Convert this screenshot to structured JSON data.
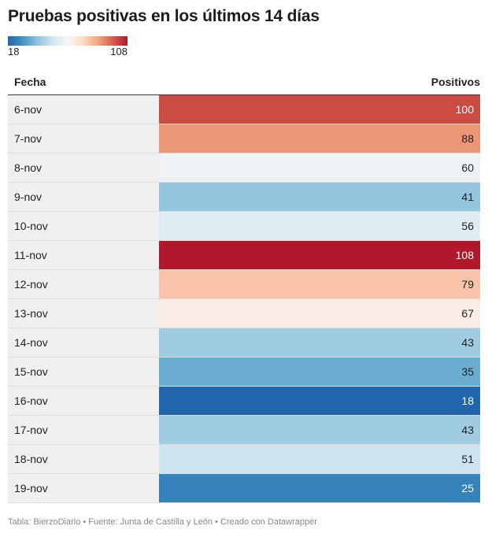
{
  "title": "Pruebas positivas en los últimos 14 días",
  "legend": {
    "min_label": "18",
    "max_label": "108"
  },
  "footer": "Tabla: BierzoDiario • Fuente: Junta de Castilla y León • Creado con Datawrapper",
  "chart_data": {
    "type": "table",
    "title": "Pruebas positivas en los últimos 14 días",
    "columns": [
      "Fecha",
      "Positivos"
    ],
    "color_scale": {
      "min": 18,
      "max": 108,
      "colors": [
        "#2166ac",
        "#4393c3",
        "#92c5de",
        "#d1e5f0",
        "#f7f7f7",
        "#fddbc7",
        "#f4a582",
        "#d6604d",
        "#b2182b"
      ]
    },
    "rows": [
      {
        "date": "6-nov",
        "value": 100
      },
      {
        "date": "7-nov",
        "value": 88
      },
      {
        "date": "8-nov",
        "value": 60
      },
      {
        "date": "9-nov",
        "value": 41
      },
      {
        "date": "10-nov",
        "value": 56
      },
      {
        "date": "11-nov",
        "value": 108
      },
      {
        "date": "12-nov",
        "value": 79
      },
      {
        "date": "13-nov",
        "value": 67
      },
      {
        "date": "14-nov",
        "value": 43
      },
      {
        "date": "15-nov",
        "value": 35
      },
      {
        "date": "16-nov",
        "value": 18
      },
      {
        "date": "17-nov",
        "value": 43
      },
      {
        "date": "18-nov",
        "value": 51
      },
      {
        "date": "19-nov",
        "value": 25
      }
    ]
  }
}
